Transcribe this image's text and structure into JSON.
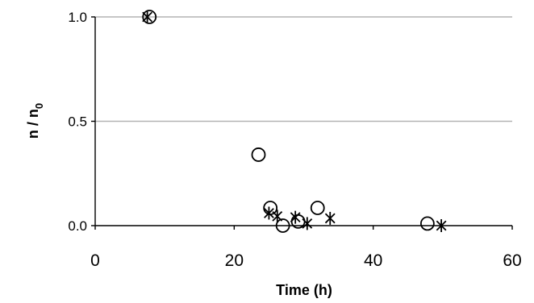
{
  "chart_data": {
    "type": "scatter",
    "xlabel": "Time (h)",
    "ylabel": "n / n",
    "ylabel_subscript": "0",
    "xlim": [
      0,
      60
    ],
    "ylim": [
      0,
      1.0
    ],
    "x_ticks": [
      0,
      20,
      40,
      60
    ],
    "x_tick_labels": [
      "0",
      "20",
      "40",
      "60"
    ],
    "y_ticks": [
      0,
      0.5,
      1.0
    ],
    "y_tick_labels": [
      "0.0",
      "0.5",
      "1.0"
    ],
    "grid": "horizontal",
    "colors": {
      "grid": "#b3b3b3",
      "axis": "#000000",
      "marker": "#000000"
    },
    "series": [
      {
        "marker": "circle",
        "x": [
          7.8,
          23.5,
          25.2,
          27.0,
          29.2,
          32.0,
          47.8
        ],
        "y": [
          1.0,
          0.34,
          0.085,
          0.0,
          0.02,
          0.085,
          0.01
        ]
      },
      {
        "marker": "asterisk",
        "x": [
          7.5,
          25.0,
          26.2,
          28.8,
          30.5,
          33.8,
          49.8
        ],
        "y": [
          1.0,
          0.06,
          0.045,
          0.04,
          0.01,
          0.035,
          0.0
        ]
      }
    ]
  }
}
